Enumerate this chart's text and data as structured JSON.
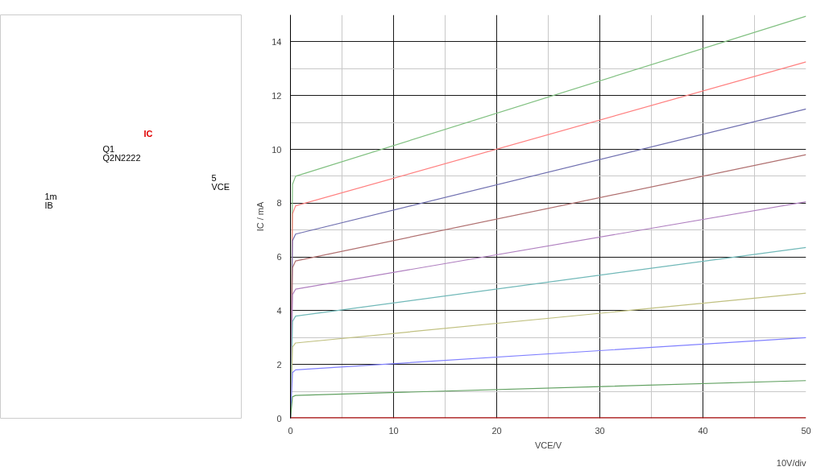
{
  "chart_data": {
    "type": "line",
    "xlabel": "VCE/V",
    "ylabel": "IC / mA",
    "annotations": [
      "IC",
      "Q1",
      "Q2N2222",
      "1m",
      "IB",
      "5",
      "VCE",
      "10V/div"
    ],
    "xlim": [
      0,
      50
    ],
    "ylim": [
      0,
      15
    ],
    "xticks": [
      0,
      {
        "value": 5,
        "label": null
      },
      10,
      {
        "value": 15,
        "label": null
      },
      20,
      {
        "value": 25,
        "label": null
      },
      30,
      {
        "value": 35,
        "label": null
      },
      40,
      {
        "value": 45,
        "label": null
      },
      50
    ],
    "yticks": [
      0,
      {
        "value": 1,
        "label": null
      },
      2,
      {
        "value": 3,
        "label": null
      },
      4,
      {
        "value": 5,
        "label": null
      },
      6,
      {
        "value": 7,
        "label": null
      },
      8,
      {
        "value": 9,
        "label": null
      },
      10,
      {
        "value": 11,
        "label": null
      },
      12,
      {
        "value": 13,
        "label": null
      },
      14
    ],
    "grid": true,
    "line_style": "solid",
    "series": [
      {
        "color": "#80c080",
        "x": [
          0,
          0.2,
          0.5,
          50
        ],
        "values": [
          0,
          8.7,
          9.0,
          14.95
        ]
      },
      {
        "color": "#ff8080",
        "x": [
          0,
          0.2,
          0.5,
          50
        ],
        "values": [
          0,
          7.6,
          7.9,
          13.25
        ]
      },
      {
        "color": "#7070b0",
        "x": [
          0,
          0.2,
          0.5,
          50
        ],
        "values": [
          0,
          6.6,
          6.85,
          11.5
        ]
      },
      {
        "color": "#b07070",
        "x": [
          0,
          0.2,
          0.5,
          50
        ],
        "values": [
          0,
          5.6,
          5.85,
          9.8
        ]
      },
      {
        "color": "#b080c0",
        "x": [
          0,
          0.2,
          0.5,
          50
        ],
        "values": [
          0,
          4.6,
          4.8,
          8.05
        ]
      },
      {
        "color": "#70b8b8",
        "x": [
          0,
          0.2,
          0.5,
          50
        ],
        "values": [
          0,
          3.6,
          3.8,
          6.35
        ]
      },
      {
        "color": "#c0c080",
        "x": [
          0,
          0.2,
          0.5,
          50
        ],
        "values": [
          0,
          2.65,
          2.8,
          4.65
        ]
      },
      {
        "color": "#8080ff",
        "x": [
          0,
          0.2,
          0.5,
          50
        ],
        "values": [
          0,
          1.7,
          1.8,
          3.0
        ]
      },
      {
        "color": "#60a060",
        "x": [
          0,
          0.2,
          0.5,
          50
        ],
        "values": [
          0,
          0.8,
          0.85,
          1.4
        ]
      },
      {
        "color": "#a00000",
        "x": [
          0,
          50
        ],
        "values": [
          0,
          0
        ]
      }
    ]
  }
}
